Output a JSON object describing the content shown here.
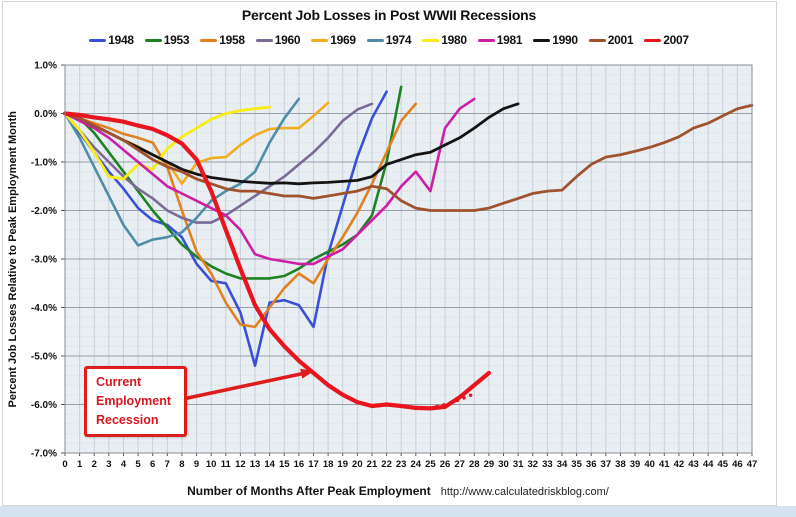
{
  "chart": {
    "title": "Percent Job Losses in Post WWII Recessions",
    "y_axis_title": "Percent Job Losses Relative to Peak Employment Month",
    "x_axis_title": "Number of Months After Peak Employment",
    "source_url": "http://www.calculatedriskblog.com/",
    "annotation": {
      "lines": [
        "Current",
        "Employment",
        "Recession"
      ],
      "color": "#d61920"
    }
  },
  "chart_data": {
    "type": "line",
    "title": "Percent Job Losses in Post WWII Recessions",
    "xlabel": "Number of Months After Peak Employment",
    "ylabel": "Percent Job Losses Relative to Peak Employment Month",
    "xlim": [
      0,
      47
    ],
    "ylim": [
      -7.0,
      1.0
    ],
    "grid": true,
    "legend_position": "top",
    "y_tick_labels": [
      "1.0%",
      "0.0%",
      "-1.0%",
      "-2.0%",
      "-3.0%",
      "-4.0%",
      "-5.0%",
      "-6.0%",
      "-7.0%"
    ],
    "y_tick_values": [
      1,
      0,
      -1,
      -2,
      -3,
      -4,
      -5,
      -6,
      -7
    ],
    "x_ticks": [
      0,
      1,
      2,
      3,
      4,
      5,
      6,
      7,
      8,
      9,
      10,
      11,
      12,
      13,
      14,
      15,
      16,
      17,
      18,
      19,
      20,
      21,
      22,
      23,
      24,
      25,
      26,
      27,
      28,
      29,
      30,
      31,
      32,
      33,
      34,
      35,
      36,
      37,
      38,
      39,
      40,
      41,
      42,
      43,
      44,
      45,
      46,
      47
    ],
    "series": [
      {
        "name": "1948",
        "color": "#3a4fd8",
        "width": 2.6,
        "start_month": 0,
        "in_legend": true,
        "values": [
          0,
          -0.4,
          -0.8,
          -1.2,
          -1.55,
          -1.95,
          -2.2,
          -2.3,
          -2.55,
          -3.1,
          -3.45,
          -3.5,
          -4.1,
          -5.2,
          -3.9,
          -3.85,
          -3.95,
          -4.4,
          -2.9,
          -1.9,
          -0.9,
          -0.1,
          0.45
        ]
      },
      {
        "name": "1953",
        "color": "#1e8222",
        "width": 2.6,
        "start_month": 0,
        "in_legend": true,
        "values": [
          0,
          -0.1,
          -0.4,
          -0.8,
          -1.2,
          -1.6,
          -2.0,
          -2.35,
          -2.7,
          -2.95,
          -3.15,
          -3.3,
          -3.4,
          -3.4,
          -3.4,
          -3.35,
          -3.2,
          -3.0,
          -2.85,
          -2.7,
          -2.5,
          -2.1,
          -1.0,
          0.55
        ]
      },
      {
        "name": "1958",
        "color": "#e1801f",
        "width": 2.6,
        "start_month": 0,
        "in_legend": true,
        "values": [
          0,
          -0.1,
          -0.2,
          -0.3,
          -0.42,
          -0.5,
          -0.6,
          -1.1,
          -2.0,
          -2.85,
          -3.3,
          -3.9,
          -4.35,
          -4.4,
          -4.0,
          -3.6,
          -3.3,
          -3.5,
          -3.0,
          -2.55,
          -2.05,
          -1.45,
          -0.8,
          -0.15,
          0.2
        ]
      },
      {
        "name": "1960",
        "color": "#7b6a96",
        "width": 2.6,
        "start_month": 0,
        "in_legend": true,
        "values": [
          0,
          -0.35,
          -0.7,
          -1.0,
          -1.3,
          -1.55,
          -1.75,
          -2.0,
          -2.15,
          -2.25,
          -2.25,
          -2.1,
          -1.9,
          -1.7,
          -1.5,
          -1.3,
          -1.05,
          -0.8,
          -0.5,
          -0.15,
          0.08,
          0.2
        ]
      },
      {
        "name": "1969",
        "color": "#f0ad1f",
        "width": 2.6,
        "start_month": 0,
        "in_legend": true,
        "values": [
          0,
          -0.12,
          -0.25,
          -0.4,
          -0.55,
          -0.68,
          -0.85,
          -1.0,
          -1.45,
          -1.02,
          -0.92,
          -0.9,
          -0.65,
          -0.45,
          -0.32,
          -0.3,
          -0.3,
          -0.05,
          0.22
        ]
      },
      {
        "name": "1974",
        "color": "#4f8ea6",
        "width": 2.6,
        "start_month": 0,
        "in_legend": true,
        "values": [
          0,
          -0.5,
          -1.1,
          -1.7,
          -2.3,
          -2.72,
          -2.6,
          -2.55,
          -2.45,
          -2.15,
          -1.8,
          -1.6,
          -1.45,
          -1.2,
          -0.6,
          -0.1,
          0.3
        ]
      },
      {
        "name": "1980",
        "color": "#f8ec12",
        "width": 2.8,
        "start_month": 0,
        "in_legend": true,
        "values": [
          0,
          -0.35,
          -0.8,
          -1.3,
          -1.35,
          -1.05,
          -1.15,
          -0.72,
          -0.48,
          -0.3,
          -0.12,
          0.0,
          0.06,
          0.1,
          0.13
        ]
      },
      {
        "name": "1981",
        "color": "#cc1fa6",
        "width": 2.6,
        "start_month": 0,
        "in_legend": true,
        "values": [
          0,
          -0.15,
          -0.3,
          -0.5,
          -0.75,
          -1.0,
          -1.25,
          -1.5,
          -1.65,
          -1.8,
          -1.95,
          -2.1,
          -2.4,
          -2.9,
          -3.0,
          -3.05,
          -3.1,
          -3.1,
          -2.95,
          -2.8,
          -2.5,
          -2.2,
          -1.9,
          -1.5,
          -1.2,
          -1.6,
          -0.3,
          0.1,
          0.3
        ]
      },
      {
        "name": "1990",
        "color": "#141414",
        "width": 2.8,
        "start_month": 0,
        "in_legend": true,
        "values": [
          0,
          -0.1,
          -0.25,
          -0.4,
          -0.55,
          -0.7,
          -0.85,
          -1.0,
          -1.15,
          -1.25,
          -1.32,
          -1.36,
          -1.4,
          -1.42,
          -1.44,
          -1.43,
          -1.45,
          -1.43,
          -1.42,
          -1.4,
          -1.38,
          -1.3,
          -1.05,
          -0.95,
          -0.85,
          -0.8,
          -0.65,
          -0.5,
          -0.3,
          -0.08,
          0.1,
          0.2
        ]
      },
      {
        "name": "2001",
        "color": "#a0522d",
        "width": 2.8,
        "start_month": 0,
        "in_legend": true,
        "values": [
          0,
          -0.1,
          -0.25,
          -0.4,
          -0.55,
          -0.75,
          -0.95,
          -1.1,
          -1.2,
          -1.35,
          -1.45,
          -1.55,
          -1.6,
          -1.6,
          -1.65,
          -1.7,
          -1.7,
          -1.75,
          -1.7,
          -1.65,
          -1.6,
          -1.5,
          -1.55,
          -1.8,
          -1.95,
          -2.0,
          -2.0,
          -2.0,
          -2.0,
          -1.95,
          -1.85,
          -1.75,
          -1.65,
          -1.6,
          -1.58,
          -1.3,
          -1.05,
          -0.9,
          -0.85,
          -0.78,
          -0.7,
          -0.6,
          -0.48,
          -0.3,
          -0.2,
          -0.05,
          0.1,
          0.17
        ]
      },
      {
        "name": "2007",
        "color": "#e8141e",
        "width": 4.2,
        "start_month": 0,
        "in_legend": true,
        "values": [
          0,
          -0.03,
          -0.08,
          -0.12,
          -0.17,
          -0.25,
          -0.32,
          -0.45,
          -0.62,
          -0.95,
          -1.6,
          -2.4,
          -3.2,
          -3.95,
          -4.45,
          -4.8,
          -5.1,
          -5.35,
          -5.6,
          -5.8,
          -5.95,
          -6.03,
          -6.0,
          -6.03,
          -6.07,
          -6.08,
          -6.05,
          -5.85,
          -5.6,
          -5.35
        ]
      },
      {
        "name": "2007-dotted",
        "color": "#e8141e",
        "width": 3.4,
        "style": "dotted",
        "start_month": 24,
        "in_legend": false,
        "values": [
          -6.08,
          -6.07,
          -6.0,
          -5.9,
          -5.78
        ]
      }
    ]
  }
}
